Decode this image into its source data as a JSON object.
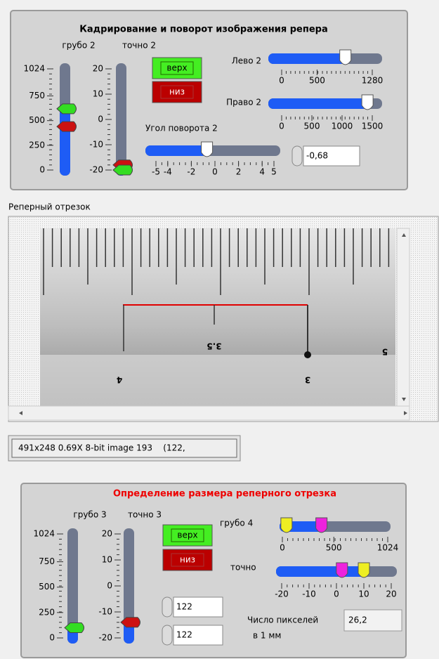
{
  "panel1": {
    "title": "Кадрирование и поворот изображения репера",
    "coarse": {
      "label": "грубо 2",
      "ticks": [
        0,
        250,
        500,
        750,
        1024
      ],
      "pointers": [
        {
          "color": "#33dd22",
          "value": 620
        },
        {
          "color": "#cc1111",
          "value": 440
        }
      ]
    },
    "fine": {
      "label": "точно 2",
      "ticks": [
        -20,
        -10,
        0,
        10,
        20
      ],
      "pointers": [
        {
          "color": "#cc1111",
          "value": -18
        },
        {
          "color": "#33dd22",
          "value": -20
        }
      ]
    },
    "button_up": "верх",
    "button_down": "низ",
    "left": {
      "label": "Лево 2",
      "ticks": [
        0,
        500,
        1280
      ],
      "pointers": [
        {
          "color": "#ffffff",
          "value": 900
        }
      ]
    },
    "right": {
      "label": "Право 2",
      "ticks": [
        0,
        500,
        1000,
        1500
      ],
      "pointers": [
        {
          "color": "#ffffff",
          "value": 1420
        }
      ]
    },
    "angle": {
      "label": "Угол поворота 2",
      "ticks": [
        -5,
        -4,
        -2,
        0,
        2,
        4,
        5
      ],
      "pointers": [
        {
          "color": "#ffffff",
          "value": -0.68
        }
      ],
      "display": "-0,68"
    }
  },
  "image_label": "Реперный отрезок",
  "image": {
    "ruler_labels": [
      "4",
      "3.5",
      "3",
      "5"
    ]
  },
  "status": "491x248 0.69X 8-bit image 193    (122,",
  "panel2": {
    "title": "Определение размера реперного отрезка",
    "coarse": {
      "label": "грубо 3",
      "ticks": [
        0,
        250,
        500,
        750,
        1024
      ],
      "pointers": [
        {
          "color": "#33dd22",
          "value": 100
        }
      ]
    },
    "fine": {
      "label": "точно 3",
      "ticks": [
        -20,
        -10,
        0,
        10,
        20
      ],
      "pointers": [
        {
          "color": "#cc1111",
          "value": -14
        }
      ]
    },
    "button_up": "верх",
    "button_down": "низ",
    "numeric_1": "122",
    "numeric_2": "122",
    "coarse4": {
      "label": "грубо 4",
      "ticks": [
        0,
        500,
        1024
      ],
      "pointers": [
        {
          "color": "#eeee22",
          "value": 40
        },
        {
          "color": "#ee22dd",
          "value": 380
        }
      ]
    },
    "fine4": {
      "label": "точно",
      "ticks": [
        -20,
        -10,
        0,
        10,
        20
      ],
      "pointers": [
        {
          "color": "#ee22dd",
          "value": 2
        },
        {
          "color": "#eeee22",
          "value": 10
        }
      ]
    },
    "pixels_label": [
      "Число пикселей",
      "в 1 мм"
    ],
    "pixels_value": "26,2"
  }
}
